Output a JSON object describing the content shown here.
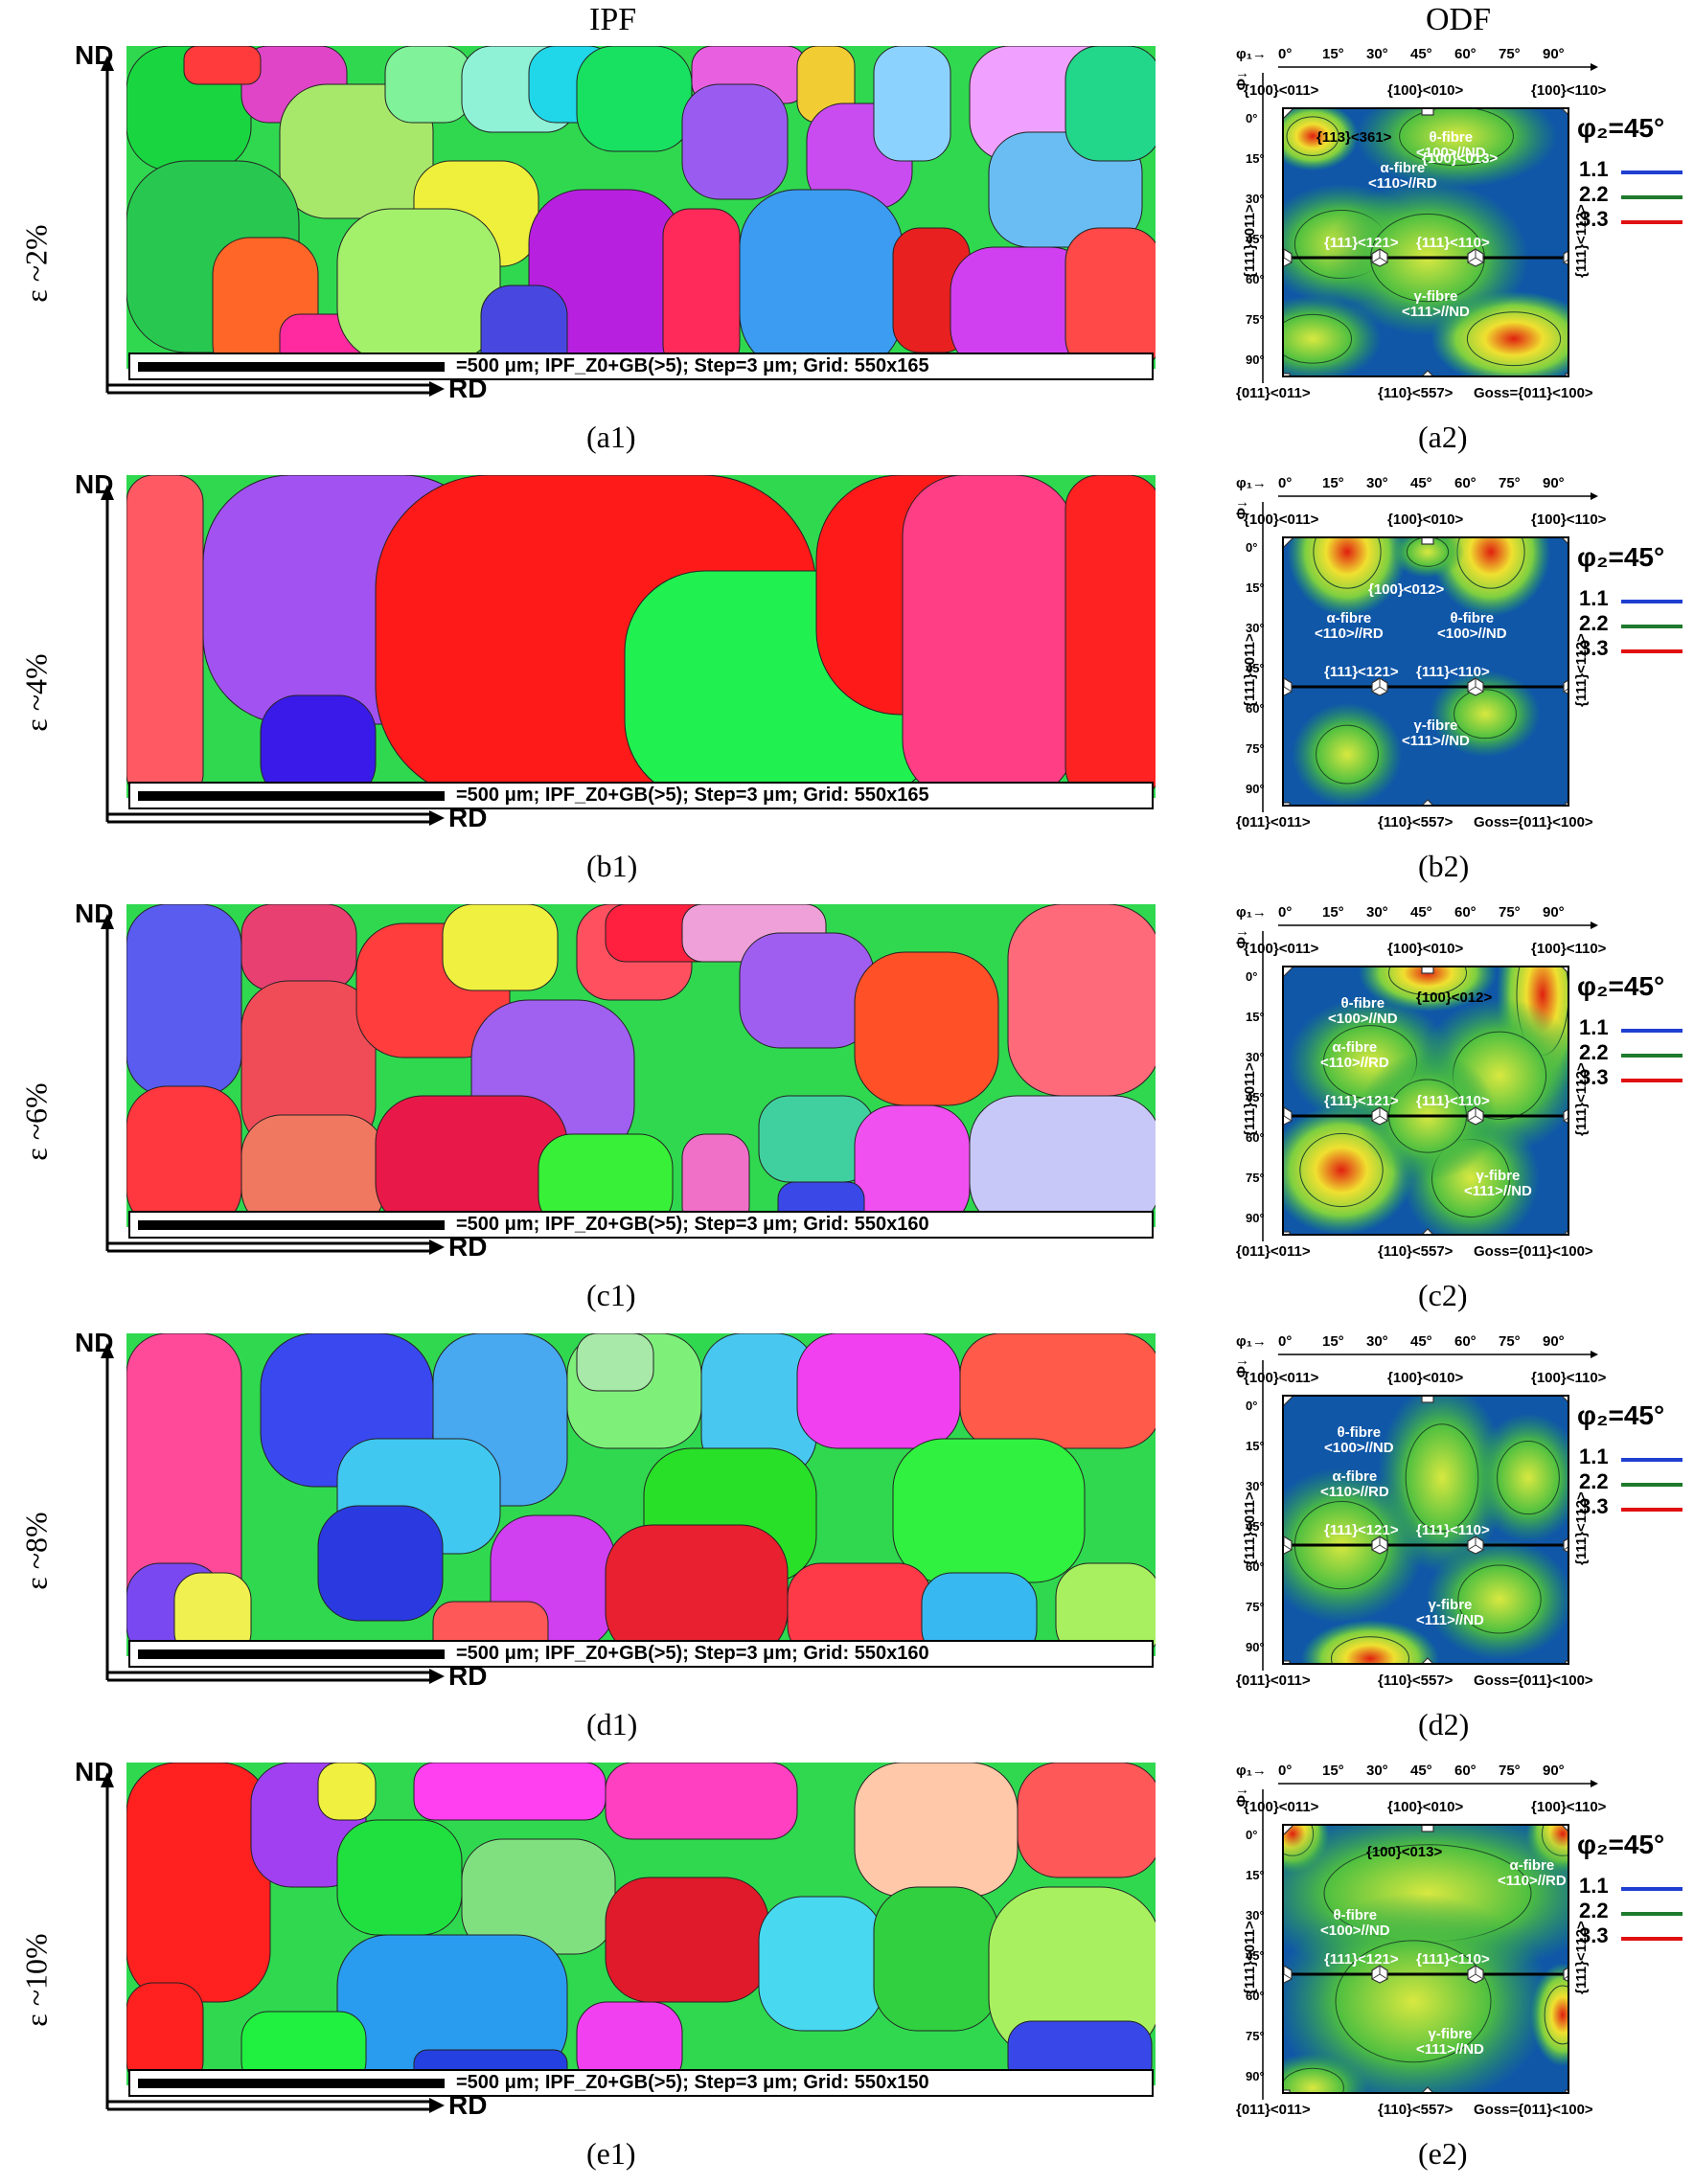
{
  "headers": {
    "ipf": "IPF",
    "odf": "ODF"
  },
  "common": {
    "nd": "ND",
    "rd": "RD",
    "phi1_axis": "φ₁→",
    "phi_axis": "Φ↓",
    "phi1_ticks": [
      "0°",
      "15°",
      "30°",
      "45°",
      "60°",
      "75°",
      "90°"
    ],
    "phi_ticks": [
      "0°",
      "15°",
      "30°",
      "45°",
      "60°",
      "75°",
      "90°"
    ],
    "top_labels": [
      "{100}<011>",
      "{100}<010>",
      "{100}<110>"
    ],
    "bottom_labels": [
      "{011}<011>",
      "{110}<557>",
      "Goss={011}<100>"
    ],
    "left_label": "{111}<011>",
    "right_label": "{111}<112>",
    "gamma_121": "{111}<121>",
    "gamma_110": "{111}<110>",
    "phi2": "φ₂=45°",
    "legend": [
      {
        "value": "1.1",
        "color": "#1f3fd0"
      },
      {
        "value": "2.2",
        "color": "#1e7a2c"
      },
      {
        "value": "3.3",
        "color": "#e01010"
      }
    ],
    "alpha_fibre": "α-fibre\n<110>//RD",
    "theta_fibre": "θ-fibre\n<100>//ND",
    "gamma_fibre": "γ-fibre\n<111>//ND"
  },
  "rows": [
    {
      "strain": "ε ~2%",
      "scalebar": "=500 μm; IPF_Z0+GB(>5); Step=3 μm; Grid: 550x165",
      "label1": "(a1)",
      "label2": "(a2)",
      "annotations": [
        "{113}<361>",
        "{100}<013>"
      ]
    },
    {
      "strain": "ε ~4%",
      "scalebar": "=500 μm; IPF_Z0+GB(>5); Step=3 μm; Grid: 550x165",
      "label1": "(b1)",
      "label2": "(b2)",
      "annotations": [
        "{100}<012>"
      ]
    },
    {
      "strain": "ε ~6%",
      "scalebar": "=500 μm; IPF_Z0+GB(>5); Step=3 μm; Grid: 550x160",
      "label1": "(c1)",
      "label2": "(c2)",
      "annotations": [
        "{100}<012>"
      ]
    },
    {
      "strain": "ε ~8%",
      "scalebar": "=500 μm; IPF_Z0+GB(>5); Step=3 μm; Grid: 550x160",
      "label1": "(d1)",
      "label2": "(d2)",
      "annotations": []
    },
    {
      "strain": "ε ~10%",
      "scalebar": "=500 μm; IPF_Z0+GB(>5); Step=3 μm; Grid: 550x150",
      "label1": "(e1)",
      "label2": "(e2)",
      "annotations": [
        "{100}<013>"
      ]
    }
  ]
}
